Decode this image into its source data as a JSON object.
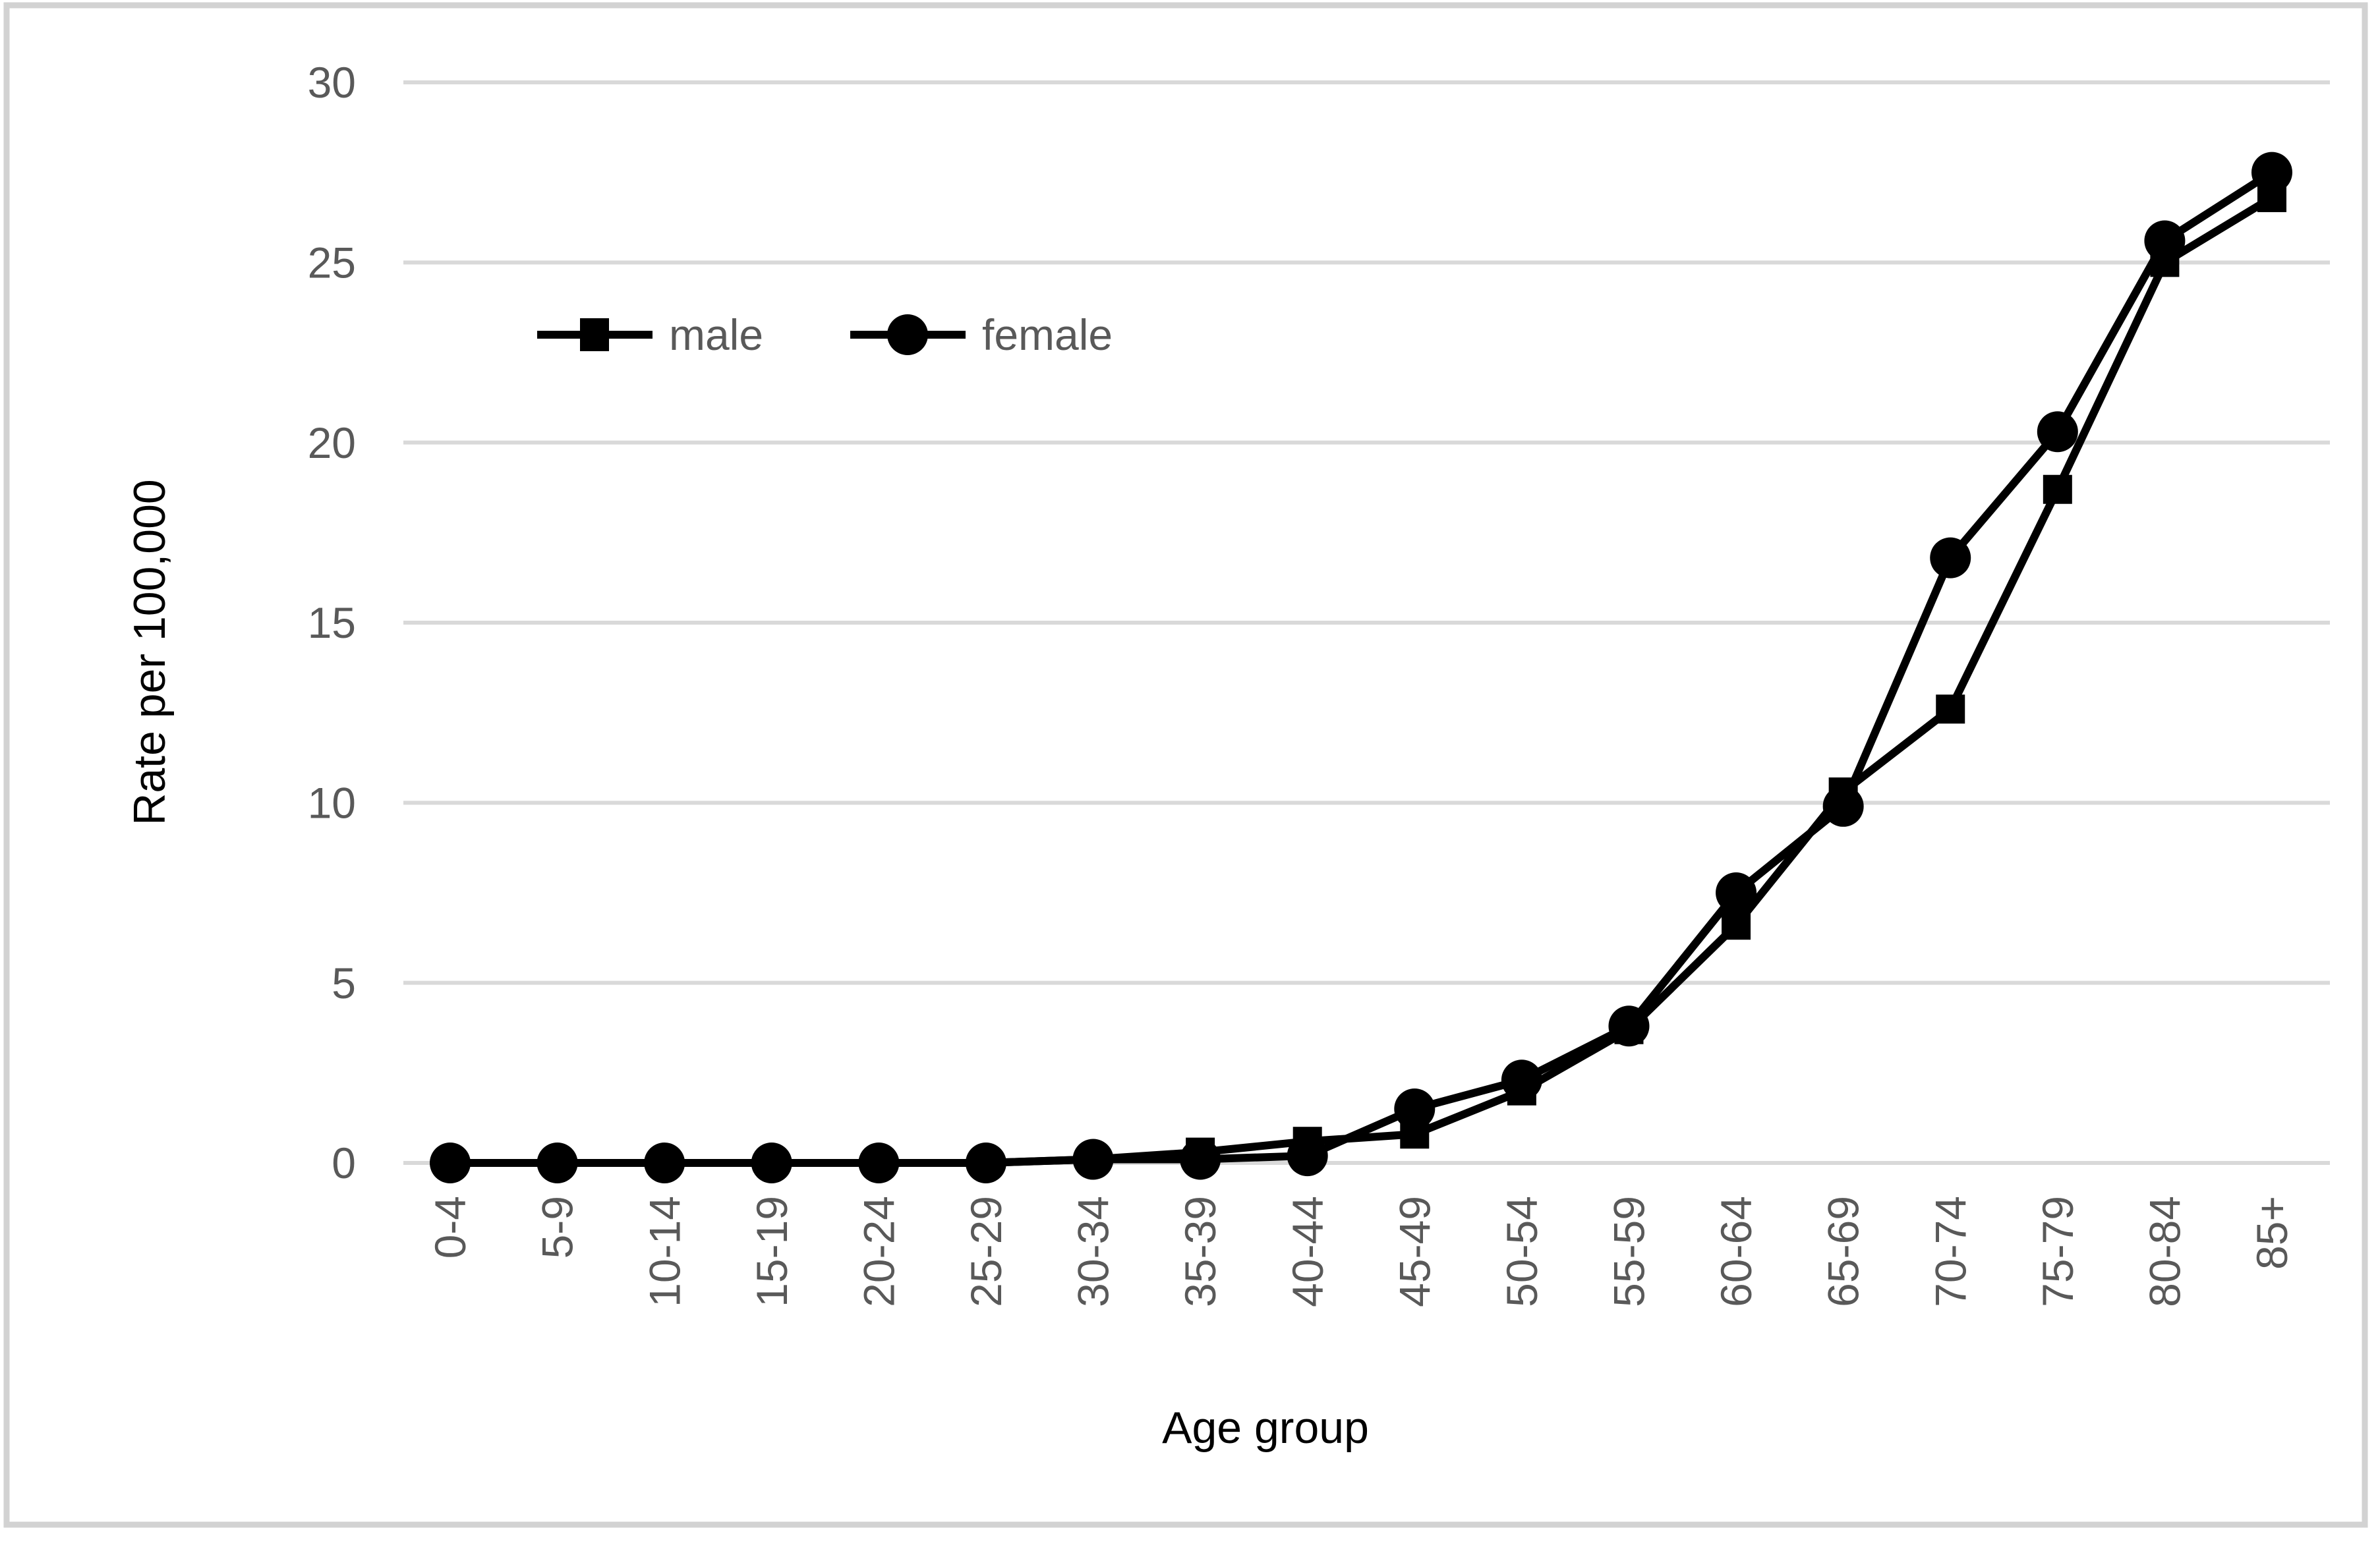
{
  "figure": {
    "background": "#ffffff",
    "border_color": "#d2d2d2"
  },
  "axes": {
    "y_title": "Rate per 100,000",
    "x_title": "Age group",
    "tick_color": "#595959",
    "title_color": "#000000",
    "gridline_color": "#d9d9d9"
  },
  "legend": {
    "items": [
      {
        "label": "male",
        "marker": "square"
      },
      {
        "label": "female",
        "marker": "circle"
      }
    ],
    "text_color": "#595959"
  },
  "chart_data": {
    "type": "line",
    "title": "",
    "xlabel": "Age group",
    "ylabel": "Rate per 100,000",
    "categories": [
      "0-4",
      "5-9",
      "10-14",
      "15-19",
      "20-24",
      "25-29",
      "30-34",
      "35-39",
      "40-44",
      "45-49",
      "50-54",
      "55-59",
      "60-64",
      "65-69",
      "70-74",
      "75-79",
      "80-84",
      "85+"
    ],
    "series": [
      {
        "name": "male",
        "marker": "square",
        "color": "#000000",
        "values": [
          0,
          0,
          0,
          0,
          0,
          0,
          0.1,
          0.3,
          0.6,
          0.8,
          2.0,
          3.7,
          6.6,
          10.3,
          12.6,
          18.7,
          25.0,
          26.8
        ]
      },
      {
        "name": "female",
        "marker": "circle",
        "color": "#000000",
        "values": [
          0,
          0,
          0,
          0,
          0,
          0,
          0.1,
          0.1,
          0.2,
          1.5,
          2.3,
          3.8,
          7.5,
          9.9,
          16.8,
          20.3,
          25.6,
          27.5
        ]
      }
    ],
    "ylim": [
      0,
      30
    ],
    "y_ticks": [
      0,
      5,
      10,
      15,
      20,
      25,
      30
    ],
    "grid": "horizontal",
    "legend_position": "inside-upper-left"
  }
}
